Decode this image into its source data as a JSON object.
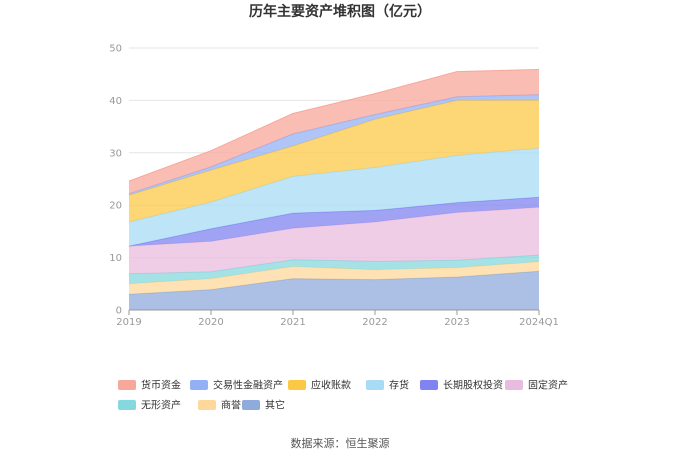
{
  "chart_data": {
    "type": "area",
    "stacked": true,
    "title": "历年主要资产堆积图（亿元）",
    "categories": [
      "2019",
      "2020",
      "2021",
      "2022",
      "2023",
      "2024Q1"
    ],
    "ylim": [
      0,
      50
    ],
    "yticks": [
      0,
      10,
      20,
      30,
      40,
      50
    ],
    "grid": true,
    "series": [
      {
        "name": "其它",
        "color": "#8fabdb",
        "values": [
          3.0,
          3.9,
          6.0,
          5.8,
          6.3,
          7.4
        ]
      },
      {
        "name": "商誉",
        "color": "#fdd89a",
        "values": [
          2.0,
          2.1,
          2.3,
          1.9,
          1.8,
          1.8
        ]
      },
      {
        "name": "无形资产",
        "color": "#85d8dd",
        "values": [
          1.9,
          1.3,
          1.3,
          1.6,
          1.4,
          1.3
        ]
      },
      {
        "name": "固定资产",
        "color": "#e9bcdf",
        "values": [
          5.3,
          5.8,
          6.0,
          7.5,
          9.1,
          9.1
        ]
      },
      {
        "name": "长期股权投资",
        "color": "#8083f0",
        "values": [
          0.0,
          2.4,
          2.9,
          2.2,
          1.9,
          1.9
        ]
      },
      {
        "name": "存货",
        "color": "#a8dbf6",
        "values": [
          4.6,
          5.1,
          7.0,
          8.2,
          9.0,
          9.4
        ]
      },
      {
        "name": "应收账款",
        "color": "#fcc947",
        "values": [
          5.1,
          6.1,
          5.8,
          9.2,
          10.5,
          9.1
        ]
      },
      {
        "name": "交易性金融资产",
        "color": "#94b0f4",
        "values": [
          0.3,
          0.6,
          2.3,
          0.9,
          0.7,
          1.1
        ]
      },
      {
        "name": "货币资金",
        "color": "#f8a79b",
        "values": [
          2.4,
          3.1,
          3.9,
          4.0,
          4.8,
          4.8
        ]
      }
    ],
    "legend_order": [
      "货币资金",
      "交易性金融资产",
      "应收账款",
      "存货",
      "长期股权投资",
      "固定资产",
      "无形资产",
      "商誉",
      "其它"
    ],
    "source": "数据来源：恒生聚源"
  }
}
